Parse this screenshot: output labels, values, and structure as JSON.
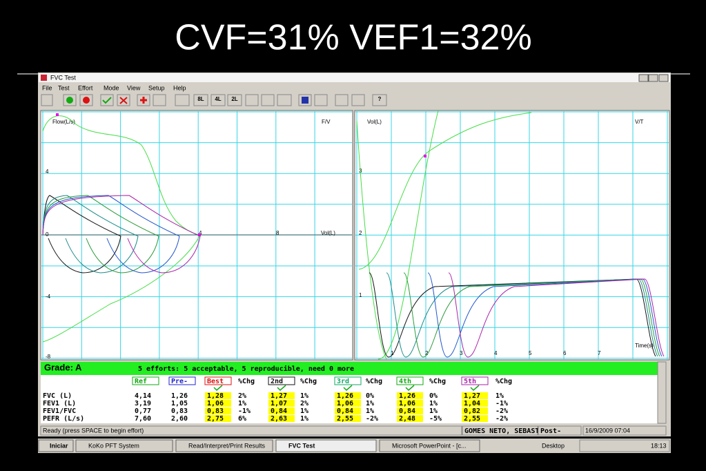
{
  "slide_title": "CVF=31%  VEF1=32%",
  "window": {
    "title": "FVC Test",
    "menu": [
      "File",
      "Test",
      "Effort",
      "Mode",
      "View",
      "Setup",
      "Help"
    ],
    "toolbar": [
      "8L",
      "4L",
      "2L",
      "?"
    ]
  },
  "flow_volume": {
    "y_label": "Flow(L/s)",
    "corner_label": "F/V",
    "x_label": "Vol(L)",
    "y_ticks": [
      "4",
      "0",
      "-4",
      "-8"
    ],
    "x_ticks": [
      "4",
      "8"
    ]
  },
  "volume_time": {
    "y_label": "Vol(L)",
    "corner_label": "V/T",
    "x_label": "Time(s)",
    "y_ticks": [
      "3",
      "2",
      "1"
    ],
    "x_ticks": [
      "1",
      "2",
      "3",
      "4",
      "5",
      "6",
      "7"
    ]
  },
  "results": {
    "grade": "Grade: A",
    "summary": "5 efforts: 5 acceptable, 5 reproducible, need 0 more",
    "columns": [
      "Ref",
      "Pre-",
      "Best",
      "%Chg",
      "2nd",
      "%Chg",
      "3rd",
      "%Chg",
      "4th",
      "%Chg",
      "5th",
      "%Chg"
    ],
    "rows": [
      [
        "FVC (L)",
        "4,14",
        "1,26",
        "1,28",
        "2%",
        "1,27",
        "1%",
        "1,26",
        "0%",
        "1,26",
        "0%",
        "1,27",
        "1%"
      ],
      [
        "FEV1 (L)",
        "3,19",
        "1,05",
        "1,06",
        "1%",
        "1,07",
        "2%",
        "1,06",
        "1%",
        "1,06",
        "1%",
        "1,04",
        "-1%"
      ],
      [
        "FEV1/FVC",
        "0,77",
        "0,83",
        "0,83",
        "-1%",
        "0,84",
        "1%",
        "0,84",
        "1%",
        "0,84",
        "1%",
        "0,82",
        "-2%"
      ],
      [
        "PEFR (L/s)",
        "7,60",
        "2,60",
        "2,75",
        "6%",
        "2,63",
        "1%",
        "2,55",
        "-2%",
        "2,48",
        "-5%",
        "2,55",
        "-2%"
      ]
    ]
  },
  "status_bar": [
    "Ready  (press SPACE to begin effort)",
    "GOMES NETO, SEBASTI",
    "Post-",
    "16/9/2009 07:04"
  ],
  "taskbar": {
    "start": "Iniciar",
    "buttons": [
      "KoKo PFT System",
      "Read/Interpret/Print Results",
      "FVC Test",
      "Microsoft PowerPoint - [c..."
    ],
    "desktop": "Desktop",
    "clock": "18:13"
  }
}
